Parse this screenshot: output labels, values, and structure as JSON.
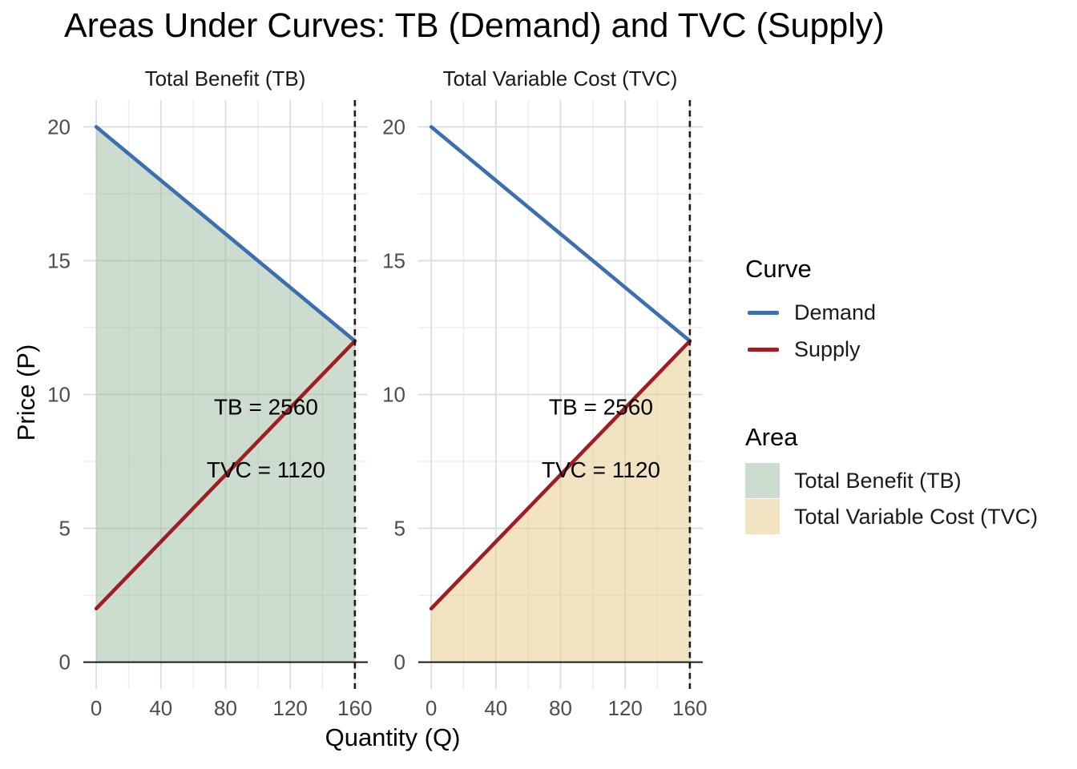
{
  "chart_data": {
    "type": "line",
    "title": "Areas Under Curves: TB (Demand) and TVC (Supply)",
    "xlabel": "Quantity (Q)",
    "ylabel": "Price (P)",
    "x_ticks": [
      0,
      40,
      80,
      120,
      160
    ],
    "y_ticks": [
      0,
      5,
      10,
      15,
      20
    ],
    "x_minor": [
      20,
      60,
      100,
      140
    ],
    "y_minor": [
      2.5,
      7.5,
      12.5,
      17.5
    ],
    "xlim": [
      -8,
      168
    ],
    "ylim": [
      -1,
      21
    ],
    "grid": true,
    "legend_position": "right",
    "series": [
      {
        "name": "Demand",
        "color": "#3c6fae",
        "points": [
          [
            0,
            20
          ],
          [
            160,
            12
          ]
        ]
      },
      {
        "name": "Supply",
        "color": "#a01d23",
        "points": [
          [
            0,
            2
          ],
          [
            160,
            12
          ]
        ]
      }
    ],
    "panels": [
      {
        "facet": "Total Benefit (TB)",
        "area_name": "Total Benefit (TB)",
        "area_fill": "rgba(153,185,157,0.5)",
        "area_points": [
          [
            0,
            0
          ],
          [
            0,
            20
          ],
          [
            160,
            12
          ],
          [
            160,
            0
          ]
        ]
      },
      {
        "facet": "Total Variable Cost (TVC)",
        "area_name": "Total Variable Cost (TVC)",
        "area_fill": "rgba(229,201,135,0.5)",
        "area_points": [
          [
            0,
            0
          ],
          [
            0,
            2
          ],
          [
            160,
            12
          ],
          [
            160,
            0
          ]
        ]
      }
    ],
    "vline": {
      "x": 160,
      "style": "dashed",
      "color": "#1a1a1a"
    },
    "hline": {
      "y": 0,
      "color": "#1a1a1a"
    },
    "annotations": [
      {
        "text": "TB = 2560",
        "x": 105,
        "y": 9.55
      },
      {
        "text": "TVC = 1120",
        "x": 105,
        "y": 7.2
      }
    ]
  },
  "legend": {
    "curve": {
      "title": "Curve",
      "items": [
        {
          "label": "Demand",
          "color": "#3c6fae"
        },
        {
          "label": "Supply",
          "color": "#a01d23"
        }
      ]
    },
    "area": {
      "title": "Area",
      "items": [
        {
          "label": "Total Benefit (TB)",
          "fill": "rgba(153,185,157,0.5)"
        },
        {
          "label": "Total Variable Cost (TVC)",
          "fill": "rgba(229,201,135,0.5)"
        }
      ]
    }
  },
  "colors": {
    "grid_major": "#dcdcdc",
    "grid_minor": "#ebebeb",
    "tick_text": "#4d4d4d",
    "axis_line": "#1a1a1a"
  }
}
